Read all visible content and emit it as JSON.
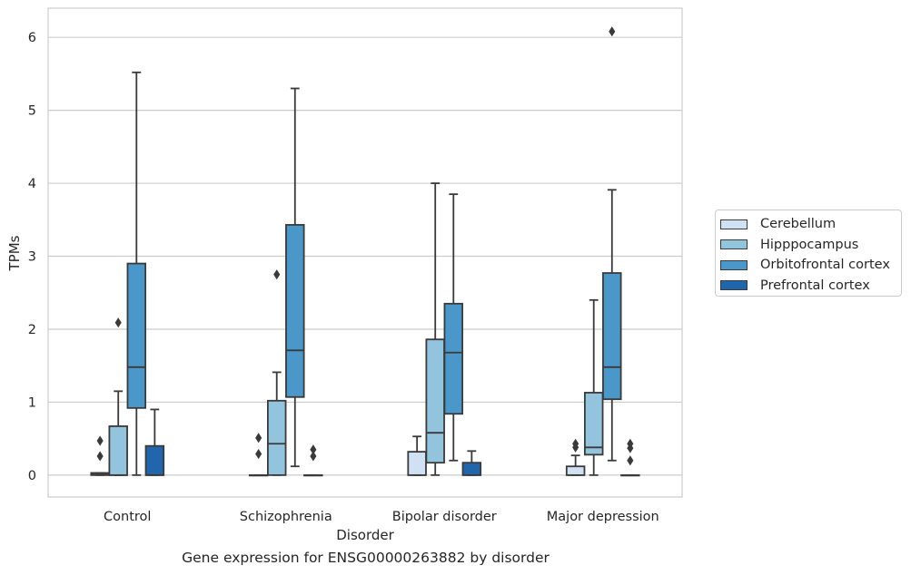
{
  "chart_data": {
    "type": "box",
    "title": "",
    "xlabel": "Disorder",
    "ylabel": "TPMs",
    "caption": "Gene expression for ENSG00000263882 by disorder",
    "ylim": [
      -0.3,
      6.4
    ],
    "yticks": [
      "0",
      "1",
      "2",
      "3",
      "4",
      "5",
      "6"
    ],
    "grid": "horizontal",
    "legend_placement": "right, outside plot",
    "categories": [
      "Control",
      "Schizophrenia",
      "Bipolar disorder",
      "Major depression"
    ],
    "series": [
      {
        "name": "Cerebellum",
        "color": "#cfe1f2",
        "boxes": [
          {
            "category": "Control",
            "whislo": 0,
            "q1": 0,
            "med": 0.01,
            "q3": 0.03,
            "whishi": 0.03,
            "fliers": [
              0.26,
              0.47
            ]
          },
          {
            "category": "Schizophrenia",
            "whislo": 0,
            "q1": 0,
            "med": 0,
            "q3": 0,
            "whishi": 0,
            "fliers": [
              0.29,
              0.51
            ]
          },
          {
            "category": "Bipolar disorder",
            "whislo": 0,
            "q1": 0,
            "med": 0,
            "q3": 0.32,
            "whishi": 0.53,
            "fliers": []
          },
          {
            "category": "Major depression",
            "whislo": 0,
            "q1": 0,
            "med": 0,
            "q3": 0.12,
            "whishi": 0.27,
            "fliers": [
              0.38,
              0.43
            ]
          }
        ]
      },
      {
        "name": "Hipppocampus",
        "color": "#93c4de",
        "boxes": [
          {
            "category": "Control",
            "whislo": 0,
            "q1": 0,
            "med": 0,
            "q3": 0.67,
            "whishi": 1.15,
            "fliers": [
              2.09
            ]
          },
          {
            "category": "Schizophrenia",
            "whislo": 0,
            "q1": 0,
            "med": 0.43,
            "q3": 1.02,
            "whishi": 1.41,
            "fliers": [
              2.75
            ]
          },
          {
            "category": "Bipolar disorder",
            "whislo": 0,
            "q1": 0.17,
            "med": 0.58,
            "q3": 1.86,
            "whishi": 4.0,
            "fliers": []
          },
          {
            "category": "Major depression",
            "whislo": 0,
            "q1": 0.28,
            "med": 0.38,
            "q3": 1.13,
            "whishi": 2.4,
            "fliers": []
          }
        ]
      },
      {
        "name": "Orbitofrontal cortex",
        "color": "#4a98c9",
        "boxes": [
          {
            "category": "Control",
            "whislo": 0,
            "q1": 0.92,
            "med": 1.48,
            "q3": 2.9,
            "whishi": 5.52,
            "fliers": []
          },
          {
            "category": "Schizophrenia",
            "whislo": 0.12,
            "q1": 1.07,
            "med": 1.71,
            "q3": 3.43,
            "whishi": 5.3,
            "fliers": []
          },
          {
            "category": "Bipolar disorder",
            "whislo": 0.2,
            "q1": 0.84,
            "med": 1.68,
            "q3": 2.35,
            "whishi": 3.85,
            "fliers": []
          },
          {
            "category": "Major depression",
            "whislo": 0.2,
            "q1": 1.04,
            "med": 1.48,
            "q3": 2.77,
            "whishi": 3.91,
            "fliers": [
              6.08
            ]
          }
        ]
      },
      {
        "name": "Prefrontal cortex",
        "color": "#2166ac",
        "boxes": [
          {
            "category": "Control",
            "whislo": 0,
            "q1": 0,
            "med": 0,
            "q3": 0.4,
            "whishi": 0.9,
            "fliers": []
          },
          {
            "category": "Schizophrenia",
            "whislo": 0,
            "q1": 0,
            "med": 0,
            "q3": 0,
            "whishi": 0,
            "fliers": [
              0.26,
              0.35
            ]
          },
          {
            "category": "Bipolar disorder",
            "whislo": 0,
            "q1": 0,
            "med": 0,
            "q3": 0.17,
            "whishi": 0.33,
            "fliers": []
          },
          {
            "category": "Major depression",
            "whislo": 0,
            "q1": 0,
            "med": 0,
            "q3": 0,
            "whishi": 0,
            "fliers": [
              0.2,
              0.37,
              0.43
            ]
          }
        ]
      }
    ]
  }
}
